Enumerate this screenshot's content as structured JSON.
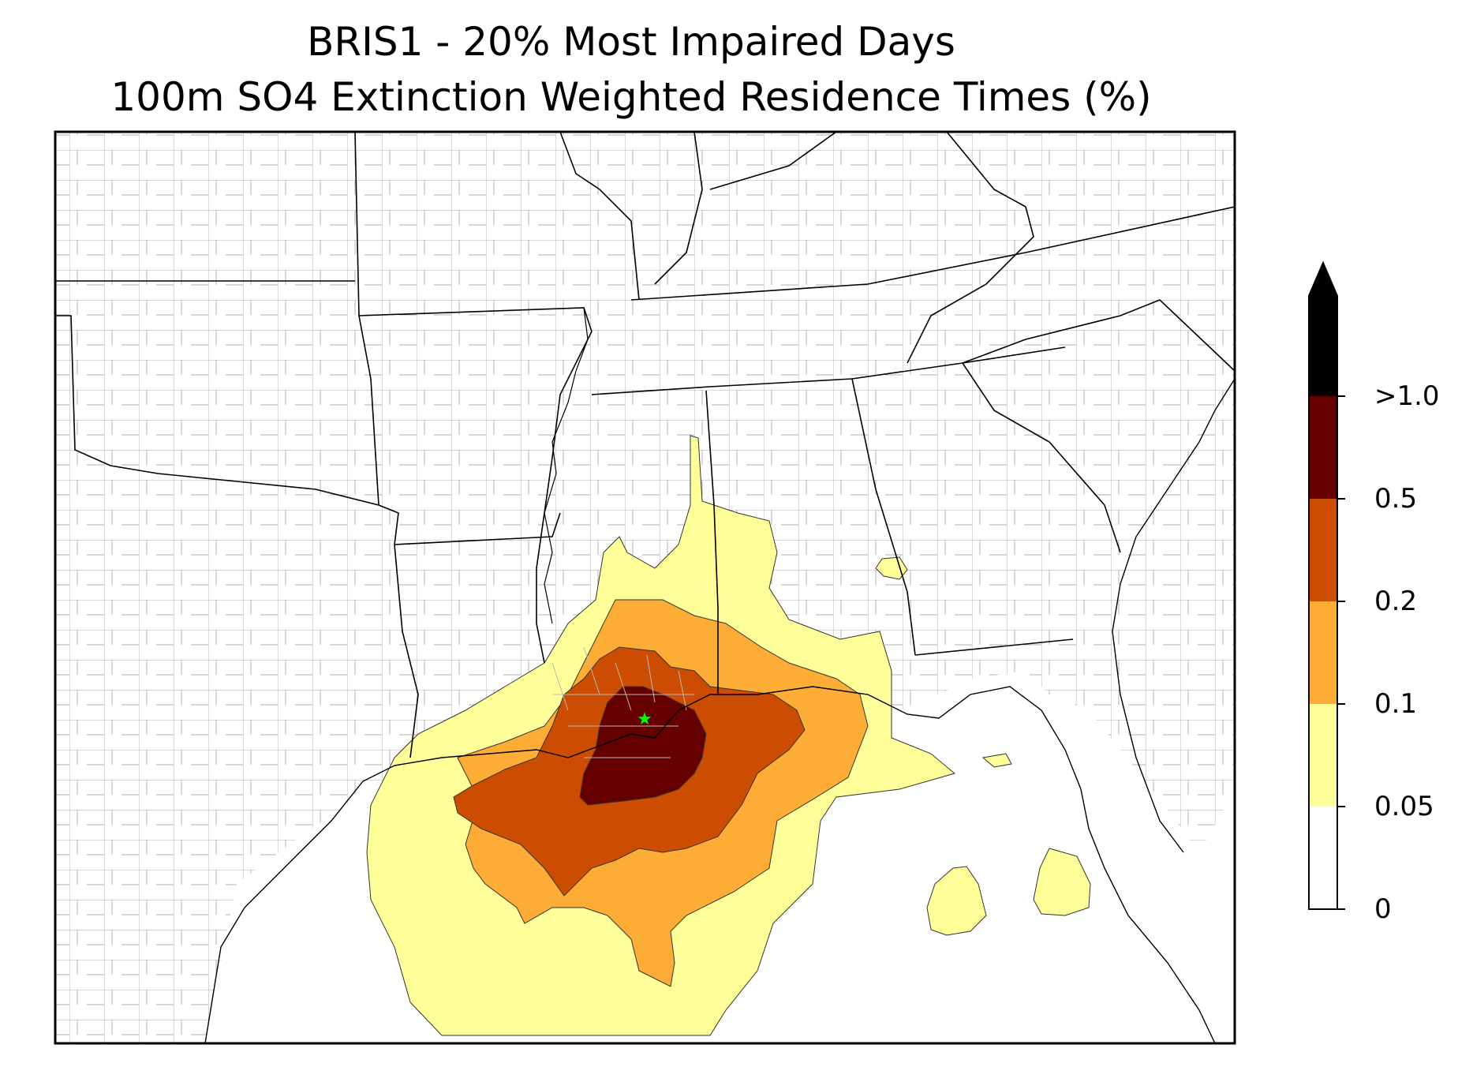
{
  "title": {
    "line1": "BRIS1 - 20% Most Impaired Days",
    "line2": "100m SO4 Extinction Weighted Residence Times (%)"
  },
  "colorbar": {
    "orientation": "vertical",
    "extend": "max",
    "bins": [
      {
        "from": 0,
        "to": 0.05,
        "color": "#ffffff"
      },
      {
        "from": 0.05,
        "to": 0.1,
        "color": "#ffff99"
      },
      {
        "from": 0.1,
        "to": 0.2,
        "color": "#fdad35"
      },
      {
        "from": 0.2,
        "to": 0.5,
        "color": "#cc4c02"
      },
      {
        "from": 0.5,
        "to": 1.0,
        "color": "#660000"
      },
      {
        "from": 1.0,
        "to": null,
        "color": "#000000"
      }
    ],
    "tick_labels": [
      "0",
      "0.05",
      "0.1",
      "0.2",
      "0.5",
      ">1.0"
    ]
  },
  "map": {
    "region": "Southeastern United States and Gulf of Mexico",
    "site_marker_color": "#00ff00",
    "state_border_color": "#000000",
    "county_border_color": "#a0a0a0"
  }
}
